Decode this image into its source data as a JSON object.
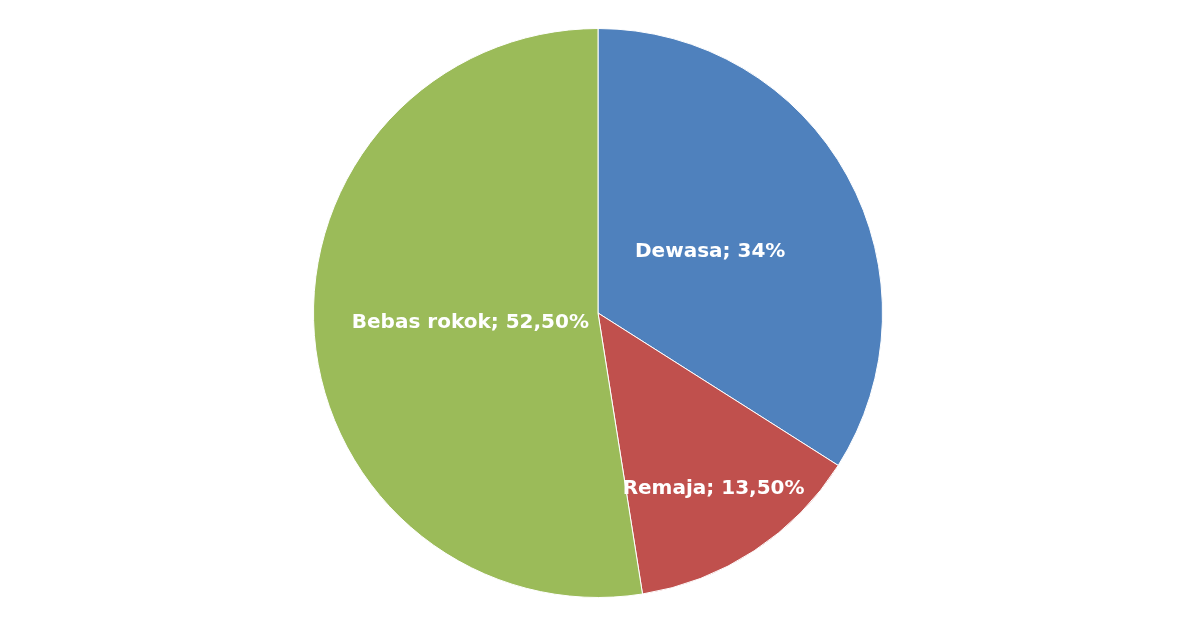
{
  "chart_data": {
    "type": "pie",
    "categories": [
      "Dewasa",
      "Remaja",
      "Bebas rokok"
    ],
    "values": [
      34,
      13.5,
      52.5
    ],
    "value_labels": [
      "34%",
      "13,50%",
      "52,50%"
    ],
    "colors": [
      "#4f81bd",
      "#c0504d",
      "#9bbb59"
    ],
    "legend": false
  }
}
